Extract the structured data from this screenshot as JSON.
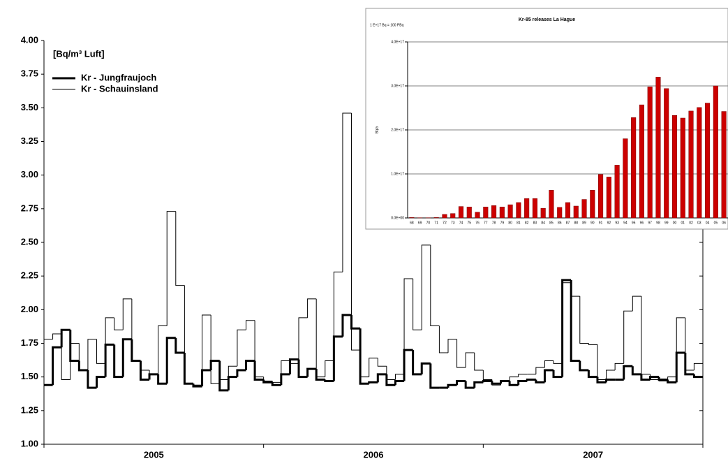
{
  "chart_data": [
    {
      "type": "line",
      "step": true,
      "y_label": "[Bq/m³ Luft]",
      "x": [
        2005,
        2005.04,
        2005.08,
        2005.12,
        2005.16,
        2005.2,
        2005.24,
        2005.28,
        2005.32,
        2005.36,
        2005.4,
        2005.44,
        2005.48,
        2005.52,
        2005.56,
        2005.6,
        2005.64,
        2005.68,
        2005.72,
        2005.76,
        2005.8,
        2005.84,
        2005.88,
        2005.92,
        2005.96,
        2006,
        2006.04,
        2006.08,
        2006.12,
        2006.16,
        2006.2,
        2006.24,
        2006.28,
        2006.32,
        2006.36,
        2006.4,
        2006.44,
        2006.48,
        2006.52,
        2006.56,
        2006.6,
        2006.64,
        2006.68,
        2006.72,
        2006.76,
        2006.8,
        2006.84,
        2006.88,
        2006.92,
        2006.96,
        2007,
        2007.04,
        2007.08,
        2007.12,
        2007.16,
        2007.2,
        2007.24,
        2007.28,
        2007.32,
        2007.36,
        2007.4,
        2007.44,
        2007.48,
        2007.52,
        2007.56,
        2007.6,
        2007.64,
        2007.68,
        2007.72,
        2007.76,
        2007.8,
        2007.84,
        2007.88,
        2007.92,
        2007.96
      ],
      "xlim": [
        2005,
        2008
      ],
      "xticks": [
        {
          "value": 2005.5,
          "label": "2005"
        },
        {
          "value": 2006.5,
          "label": "2006"
        },
        {
          "value": 2007.5,
          "label": "2007"
        }
      ],
      "ylim": [
        1,
        4
      ],
      "yticks": [
        {
          "value": 1,
          "label": "1.00"
        },
        {
          "value": 1.25,
          "label": "1.25"
        },
        {
          "value": 1.5,
          "label": "1.50"
        },
        {
          "value": 1.75,
          "label": "1.75"
        },
        {
          "value": 2,
          "label": "2.00"
        },
        {
          "value": 2.25,
          "label": "2.25"
        },
        {
          "value": 2.5,
          "label": "2.50"
        },
        {
          "value": 2.75,
          "label": "2.75"
        },
        {
          "value": 3,
          "label": "3.00"
        },
        {
          "value": 3.25,
          "label": "3.25"
        },
        {
          "value": 3.5,
          "label": "3.50"
        },
        {
          "value": 3.75,
          "label": "3.75"
        },
        {
          "value": 4,
          "label": "4.00"
        }
      ],
      "grid": false,
      "series": [
        {
          "name": "Kr - Jungfraujoch",
          "color": "#000000",
          "line_width": 3,
          "values": [
            1.44,
            1.72,
            1.85,
            1.62,
            1.55,
            1.42,
            1.5,
            1.74,
            1.5,
            1.78,
            1.62,
            1.48,
            1.52,
            1.45,
            1.79,
            1.68,
            1.45,
            1.43,
            1.55,
            1.62,
            1.4,
            1.5,
            1.55,
            1.62,
            1.48,
            1.46,
            1.44,
            1.52,
            1.63,
            1.5,
            1.56,
            1.48,
            1.47,
            1.8,
            1.96,
            1.86,
            1.45,
            1.46,
            1.52,
            1.44,
            1.47,
            1.7,
            1.52,
            1.6,
            1.42,
            1.42,
            1.44,
            1.47,
            1.42,
            1.46,
            1.47,
            1.45,
            1.47,
            1.44,
            1.47,
            1.48,
            1.46,
            1.55,
            1.5,
            2.22,
            1.62,
            1.55,
            1.5,
            1.46,
            1.48,
            1.48,
            1.58,
            1.52,
            1.48,
            1.5,
            1.48,
            1.46,
            1.68,
            1.52,
            1.5
          ]
        },
        {
          "name": "Kr - Schauinsland",
          "color": "#000000",
          "line_width": 1,
          "values": [
            1.78,
            1.82,
            1.48,
            1.75,
            1.55,
            1.78,
            1.6,
            1.94,
            1.85,
            2.08,
            1.62,
            1.55,
            1.52,
            1.88,
            2.73,
            2.18,
            1.45,
            1.44,
            1.96,
            1.45,
            1.48,
            1.58,
            1.85,
            1.92,
            1.5,
            1.47,
            1.46,
            1.62,
            1.6,
            1.94,
            2.08,
            1.5,
            1.62,
            2.28,
            3.46,
            1.7,
            1.5,
            1.64,
            1.58,
            1.48,
            1.52,
            2.23,
            1.85,
            2.48,
            1.88,
            1.68,
            1.78,
            1.57,
            1.68,
            1.55,
            1.48,
            1.44,
            1.47,
            1.5,
            1.52,
            1.52,
            1.57,
            1.62,
            1.6,
            2.2,
            2.1,
            1.75,
            1.74,
            1.48,
            1.55,
            1.6,
            1.99,
            2.1,
            1.52,
            1.48,
            1.47,
            1.5,
            1.94,
            1.55,
            1.6
          ]
        }
      ]
    },
    {
      "type": "bar",
      "title": "Kr-85 releases La Hague",
      "note": "1 E+17 Bq = 100 PBq",
      "y_label": "Bq/a",
      "categories": [
        "68",
        "69",
        "70",
        "71",
        "72",
        "73",
        "74",
        "75",
        "76",
        "77",
        "78",
        "79",
        "80",
        "81",
        "82",
        "83",
        "84",
        "85",
        "86",
        "87",
        "88",
        "89",
        "90",
        "91",
        "92",
        "93",
        "94",
        "95",
        "96",
        "97",
        "98",
        "99",
        "00",
        "01",
        "02",
        "03",
        "04",
        "05",
        "06"
      ],
      "values": [
        1000000000000000.0,
        500000000000000.0,
        500000000000000.0,
        1000000000000000.0,
        8000000000000000.0,
        1e+16,
        2.6e+16,
        2.5e+16,
        1.3e+16,
        2.5e+16,
        2.8e+16,
        2.5e+16,
        3e+16,
        3.5e+16,
        4.4e+16,
        4.4e+16,
        2.2e+16,
        6.3e+16,
        2.4e+16,
        3.5e+16,
        2.7e+16,
        4.2e+16,
        6.3e+16,
        9.9e+16,
        9.3e+16,
        1.2e+17,
        1.8e+17,
        2.28e+17,
        2.57e+17,
        2.98e+17,
        3.2e+17,
        2.94e+17,
        2.33e+17,
        2.27e+17,
        2.43e+17,
        2.51e+17,
        2.61e+17,
        3e+17,
        2.42e+17
      ],
      "color": "#cc0000",
      "ylim": [
        0,
        4e+17
      ],
      "yticks": [
        {
          "value": 0,
          "label": "0.0E+00"
        },
        {
          "value": 1e+17,
          "label": "1.0E+17"
        },
        {
          "value": 2e+17,
          "label": "2.0E+17"
        },
        {
          "value": 3e+17,
          "label": "3.0E+17"
        },
        {
          "value": 4e+17,
          "label": "4.0E+17"
        }
      ],
      "grid": true
    }
  ]
}
